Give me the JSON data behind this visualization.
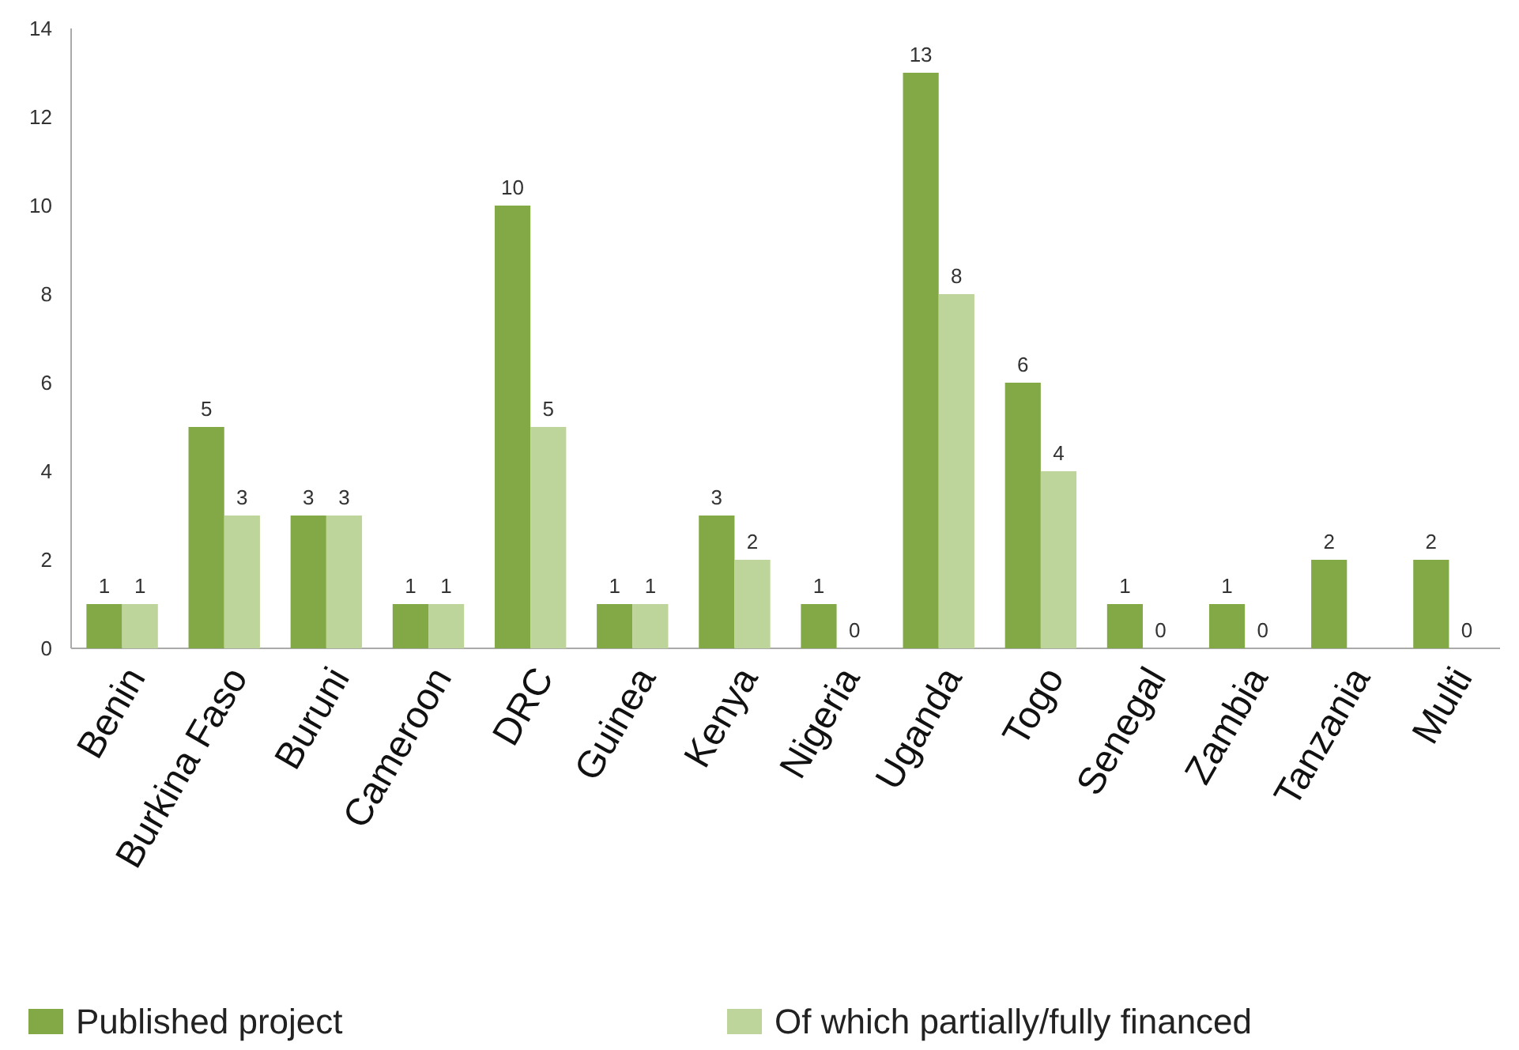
{
  "chart_data": {
    "type": "bar",
    "categories": [
      "Benin",
      "Burkina Faso",
      "Buruni",
      "Cameroon",
      "DRC",
      "Guinea",
      "Kenya",
      "Nigeria",
      "Uganda",
      "Togo",
      "Senegal",
      "Zambia",
      "Tanzania",
      "Multi"
    ],
    "series": [
      {
        "name": "Published project",
        "color": "#82a945",
        "values": [
          1,
          5,
          3,
          1,
          10,
          1,
          3,
          1,
          13,
          6,
          1,
          1,
          2,
          2
        ]
      },
      {
        "name": "Of which partially/fully financed",
        "color": "#bdd49a",
        "values": [
          1,
          3,
          3,
          1,
          5,
          1,
          2,
          0,
          8,
          4,
          0,
          0,
          null,
          0
        ]
      }
    ],
    "ylim": [
      0,
      14
    ],
    "yticks": [
      0,
      2,
      4,
      6,
      8,
      10,
      12,
      14
    ],
    "grid": false,
    "data_labels": true,
    "legend": "bottom"
  }
}
